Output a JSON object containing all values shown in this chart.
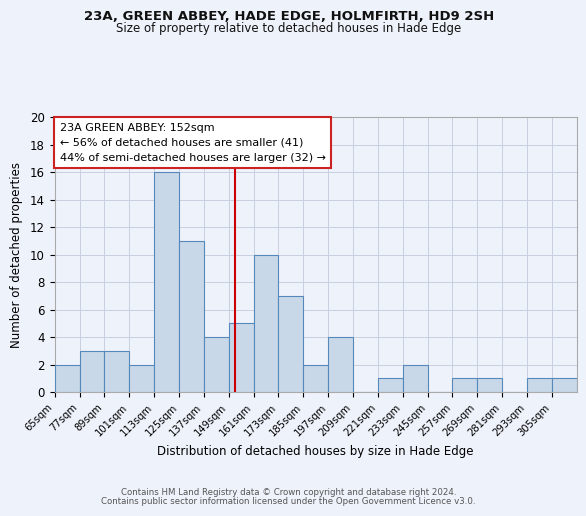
{
  "title": "23A, GREEN ABBEY, HADE EDGE, HOLMFIRTH, HD9 2SH",
  "subtitle": "Size of property relative to detached houses in Hade Edge",
  "xlabel": "Distribution of detached houses by size in Hade Edge",
  "ylabel": "Number of detached properties",
  "bin_labels": [
    "65sqm",
    "77sqm",
    "89sqm",
    "101sqm",
    "113sqm",
    "125sqm",
    "137sqm",
    "149sqm",
    "161sqm",
    "173sqm",
    "185sqm",
    "197sqm",
    "209sqm",
    "221sqm",
    "233sqm",
    "245sqm",
    "257sqm",
    "269sqm",
    "281sqm",
    "293sqm",
    "305sqm"
  ],
  "bin_edges": [
    65,
    77,
    89,
    101,
    113,
    125,
    137,
    149,
    161,
    173,
    185,
    197,
    209,
    221,
    233,
    245,
    257,
    269,
    281,
    293,
    305
  ],
  "counts": [
    2,
    3,
    3,
    2,
    16,
    11,
    4,
    5,
    10,
    7,
    2,
    4,
    0,
    1,
    2,
    0,
    1,
    1,
    0,
    1,
    1
  ],
  "property_size": 152,
  "annotation_title": "23A GREEN ABBEY: 152sqm",
  "annotation_line1": "← 56% of detached houses are smaller (41)",
  "annotation_line2": "44% of semi-detached houses are larger (32) →",
  "bar_color": "#c8d8e8",
  "bar_edge_color": "#5588bb",
  "vline_color": "#cc0000",
  "grid_color": "#c8cfe0",
  "bg_color": "#eef2fa",
  "ylim": [
    0,
    20
  ],
  "footer1": "Contains HM Land Registry data © Crown copyright and database right 2024.",
  "footer2": "Contains public sector information licensed under the Open Government Licence v3.0."
}
